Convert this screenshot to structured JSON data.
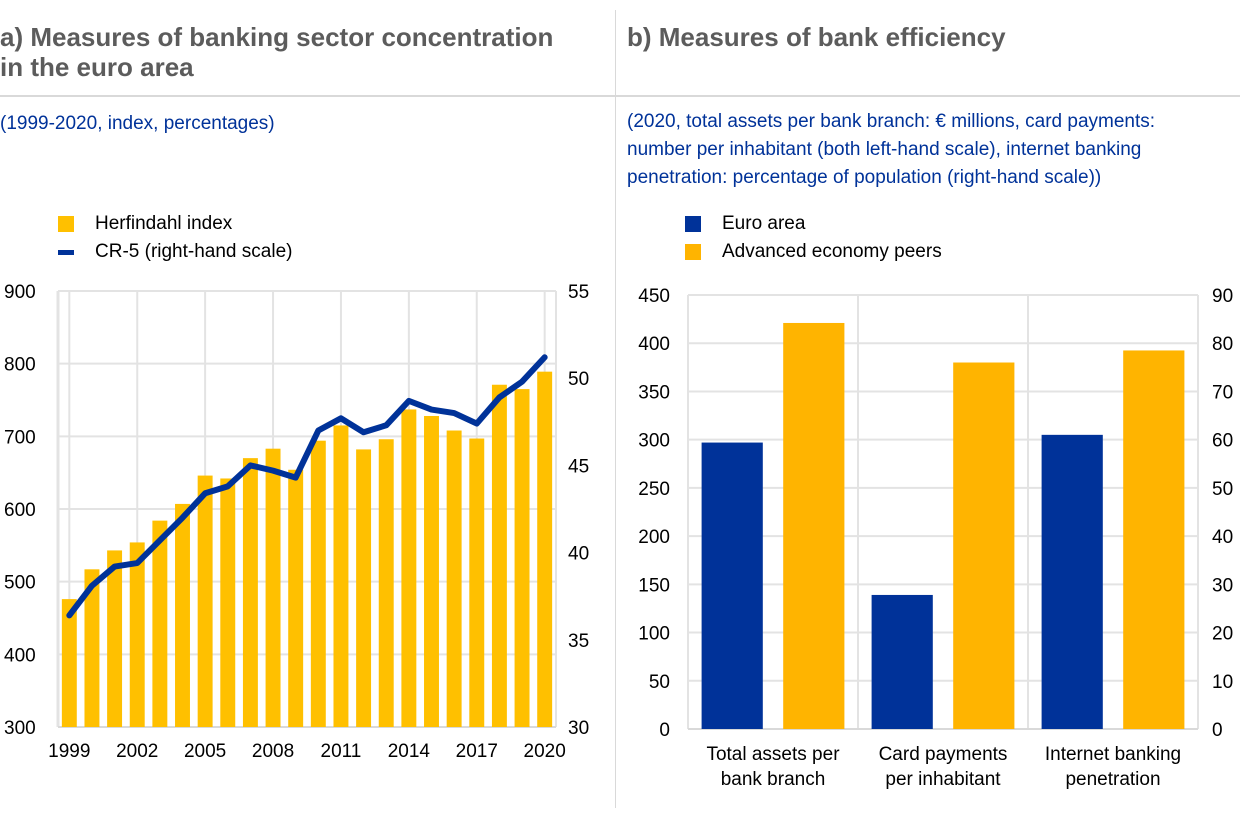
{
  "panel_a": {
    "title_line1": "a) Measures of banking sector concentration",
    "title_line2": "in the euro area",
    "subtitle": "(1999-2020, index, percentages)",
    "legend": [
      {
        "label": "Herfindahl index",
        "color": "#ffc000",
        "kind": "bar"
      },
      {
        "label": "CR-5 (right-hand scale)",
        "color": "#003299",
        "kind": "line"
      }
    ]
  },
  "panel_b": {
    "title": "b) Measures of bank efficiency",
    "subtitle_lines": [
      "(2020, total assets per bank branch: € millions, card payments:",
      "number per inhabitant (both left-hand scale), internet banking",
      "penetration: percentage of population (right-hand scale))"
    ],
    "legend": [
      {
        "label": "Euro area",
        "color": "#003299"
      },
      {
        "label": "Advanced economy peers",
        "color": "#ffb400"
      }
    ]
  },
  "chart_data": [
    {
      "type": "bar",
      "title": "a) Measures of banking sector concentration in the euro area",
      "subtitle": "(1999-2020, index, percentages)",
      "categories": [
        "1999",
        "2000",
        "2001",
        "2002",
        "2003",
        "2004",
        "2005",
        "2006",
        "2007",
        "2008",
        "2009",
        "2010",
        "2011",
        "2012",
        "2013",
        "2014",
        "2015",
        "2016",
        "2017",
        "2018",
        "2019",
        "2020"
      ],
      "x_tick_labels": [
        "1999",
        "2002",
        "2005",
        "2008",
        "2011",
        "2014",
        "2017",
        "2020"
      ],
      "series": [
        {
          "name": "Herfindahl index",
          "type": "bar",
          "axis": "left",
          "color": "#ffc000",
          "values": [
            476,
            517,
            543,
            554,
            584,
            607,
            646,
            642,
            670,
            683,
            654,
            694,
            715,
            682,
            696,
            737,
            728,
            708,
            697,
            771,
            765,
            789
          ]
        },
        {
          "name": "CR-5 (right-hand scale)",
          "type": "line",
          "axis": "right",
          "color": "#003299",
          "values": [
            36.4,
            38.1,
            39.2,
            39.4,
            40.7,
            42.0,
            43.4,
            43.8,
            45.0,
            44.7,
            44.3,
            47.0,
            47.7,
            46.9,
            47.3,
            48.7,
            48.2,
            48.0,
            47.4,
            48.9,
            49.8,
            51.2
          ]
        }
      ],
      "y_left": {
        "lim": [
          300,
          900
        ],
        "ticks": [
          "900",
          "800",
          "700",
          "600",
          "500",
          "400",
          "300"
        ]
      },
      "y_right": {
        "lim": [
          30,
          55
        ],
        "ticks": [
          "55",
          "50",
          "45",
          "40",
          "35",
          "30"
        ]
      },
      "grid": true,
      "legend_position": "top-left"
    },
    {
      "type": "bar",
      "title": "b) Measures of bank efficiency",
      "categories": [
        [
          "Total assets per",
          "bank branch"
        ],
        [
          "Card payments",
          "per inhabitant"
        ],
        [
          "Internet banking",
          "penetration"
        ]
      ],
      "category_axis": [
        "left",
        "left",
        "right"
      ],
      "series": [
        {
          "name": "Euro area",
          "color": "#003299",
          "values": [
            297,
            139,
            61
          ]
        },
        {
          "name": "Advanced economy peers",
          "color": "#ffb400",
          "values": [
            421,
            380,
            78.5
          ]
        }
      ],
      "y_left": {
        "lim": [
          0,
          450
        ],
        "ticks": [
          "450",
          "400",
          "350",
          "300",
          "250",
          "200",
          "150",
          "100",
          "50",
          "0"
        ]
      },
      "y_right": {
        "lim": [
          0,
          90
        ],
        "ticks": [
          "90",
          "80",
          "70",
          "60",
          "50",
          "40",
          "30",
          "20",
          "10",
          "0"
        ]
      },
      "grid": true,
      "legend_position": "top-left"
    }
  ]
}
